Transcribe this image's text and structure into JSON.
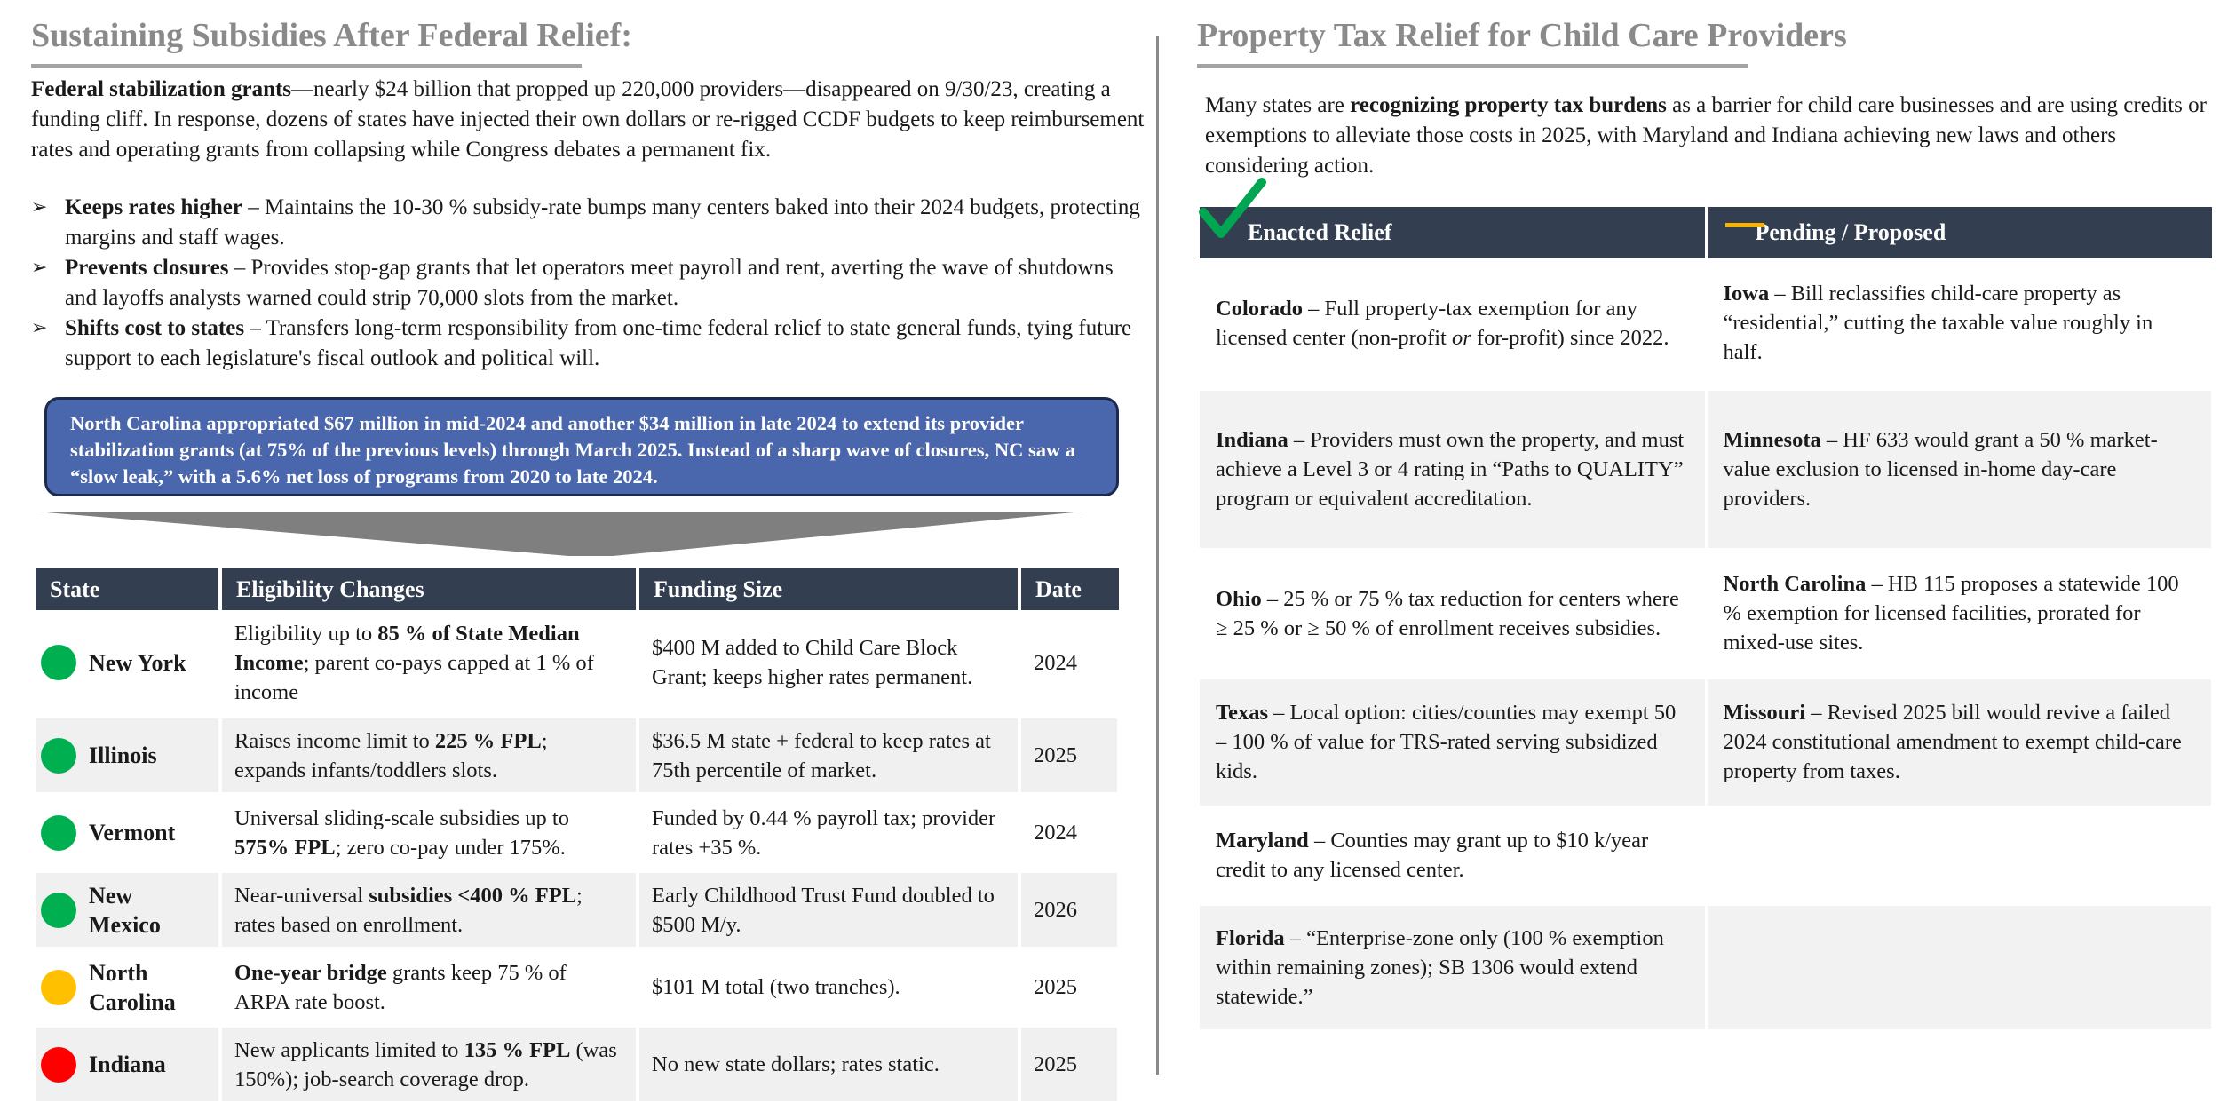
{
  "left": {
    "title": "Sustaining Subsidies After Federal Relief:",
    "intro_bold": "Federal stabilization grants",
    "intro_rest": "—nearly $24 billion that propped up 220,000 providers—disappeared on 9/30/23, creating a funding cliff. In response, dozens of states have injected their own dollars or re-rigged CCDF budgets to keep reimbursement rates and operating grants from collapsing while Congress debates a permanent fix.",
    "bullets": [
      {
        "bold": "Keeps rates higher",
        "text": " – Maintains the 10-30 % subsidy-rate bumps many centers baked into their 2024 budgets, protecting margins and staff wages."
      },
      {
        "bold": "Prevents closures",
        "text": " – Provides stop-gap grants that let operators meet payroll and rent, averting the wave of shutdowns and layoffs analysts warned could strip 70,000 slots from the market."
      },
      {
        "bold": "Shifts cost to states",
        "text": " – Transfers long-term responsibility from one-time federal relief to state general funds, tying future support to each legislature's fiscal outlook and political will."
      }
    ],
    "callout": "North Carolina appropriated $67 million in mid-2024 and another $34 million in late 2024 to extend its provider stabilization grants (at 75% of the previous levels) through March 2025. Instead of a sharp wave of closures, NC saw a “slow leak,” with a 5.6% net loss of programs from 2020 to late 2024.",
    "table_headers": [
      "State",
      "Eligibility Changes",
      "Funding Size",
      "Date"
    ],
    "rows": [
      {
        "state": "New York",
        "status_color": "#00b050",
        "elig_a": "Eligibility up to ",
        "elig_b": "85 % of State Median Income",
        "elig_c": "; parent co-pays capped at 1 % of income",
        "funding": "$400 M added to Child Care Block Grant; keeps higher rates permanent.",
        "date": "2024"
      },
      {
        "state": "Illinois",
        "status_color": "#00b050",
        "elig_a": "Raises income limit to ",
        "elig_b": "225 % FPL",
        "elig_c": "; expands infants/toddlers slots.",
        "funding": "$36.5 M state + federal to keep rates at 75th percentile of market.",
        "date": "2025"
      },
      {
        "state": "Vermont",
        "status_color": "#00b050",
        "elig_a": "Universal sliding-scale subsidies up to ",
        "elig_b": "575% FPL",
        "elig_c": "; zero co-pay under 175%.",
        "funding": "Funded by 0.44 % payroll tax; provider rates +35 %.",
        "date": "2024"
      },
      {
        "state": "New Mexico",
        "status_color": "#00b050",
        "elig_a": "Near-universal ",
        "elig_b": "subsidies <400 % FPL",
        "elig_c": "; rates based on enrollment.",
        "funding": "Early Childhood Trust Fund doubled to $500 M/y.",
        "date": "2026"
      },
      {
        "state": "North Carolina",
        "status_color": "#ffc000",
        "elig_a": "",
        "elig_b": "One-year bridge",
        "elig_c": " grants keep 75 % of ARPA rate boost.",
        "funding": "$101 M total (two tranches).",
        "date": "2025"
      },
      {
        "state": "Indiana",
        "status_color": "#ff0000",
        "elig_a": "New applicants limited to ",
        "elig_b": "135 % FPL",
        "elig_c": " (was 150%); job-search coverage drop.",
        "funding": "No new state dollars; rates static.",
        "date": "2025"
      }
    ]
  },
  "right": {
    "title": "Property Tax Relief for Child Care Providers",
    "intro_a": "Many states are ",
    "intro_bold": "recognizing property tax burdens",
    "intro_b": " as a barrier for child care businesses and are using credits or exemptions to alleviate those costs in 2025, with Maryland and Indiana achieving new laws and others considering action.",
    "headers": [
      "Enacted Relief",
      "Pending / Proposed"
    ],
    "header_icons": [
      "checkmark-icon",
      "dash-icon"
    ],
    "accent_colors": {
      "check": "#00a651",
      "dash": "#f4b400"
    },
    "rows": [
      {
        "enacted_state": "Colorado",
        "enacted_text": " – Full property-tax exemption for any licensed center (non-profit ",
        "enacted_italic": "or",
        "enacted_text2": " for-profit) since 2022.",
        "pending_state": "Iowa",
        "pending_text": " – Bill reclassifies child-care property as “residential,” cutting the taxable value roughly in half."
      },
      {
        "enacted_state": "Indiana",
        "enacted_text": " – Providers must own the property, and must achieve a Level 3 or 4 rating in “Paths to QUALITY” program or equivalent accreditation.",
        "enacted_italic": "",
        "enacted_text2": "",
        "pending_state": "Minnesota",
        "pending_text": " – HF 633 would grant a 50 % market-value exclusion to licensed in-home day-care providers."
      },
      {
        "enacted_state": "Ohio",
        "enacted_text": " – 25 % or 75 % tax reduction for centers where ≥ 25 % or ≥ 50 % of enrollment receives subsidies.",
        "enacted_italic": "",
        "enacted_text2": "",
        "pending_state": "North Carolina",
        "pending_text": " – HB 115 proposes a statewide 100 % exemption for licensed facilities, prorated for mixed-use sites."
      },
      {
        "enacted_state": "Texas",
        "enacted_text": " – Local option: cities/counties may exempt 50 – 100 % of value for TRS-rated serving subsidized kids.",
        "enacted_italic": "",
        "enacted_text2": "",
        "pending_state": "Missouri",
        "pending_text": " – Revised 2025 bill would revive a failed 2024 constitutional amendment to exempt child-care property from taxes."
      },
      {
        "enacted_state": "Maryland",
        "enacted_text": " – Counties may grant up to $10 k/year credit to any licensed center.",
        "enacted_italic": "",
        "enacted_text2": "",
        "pending_state": "",
        "pending_text": ""
      },
      {
        "enacted_state": "Florida",
        "enacted_text": " – “Enterprise-zone only (100 % exemption within remaining zones); SB 1306 would extend statewide.”",
        "enacted_italic": "",
        "enacted_text2": "",
        "pending_state": "",
        "pending_text": ""
      }
    ]
  }
}
